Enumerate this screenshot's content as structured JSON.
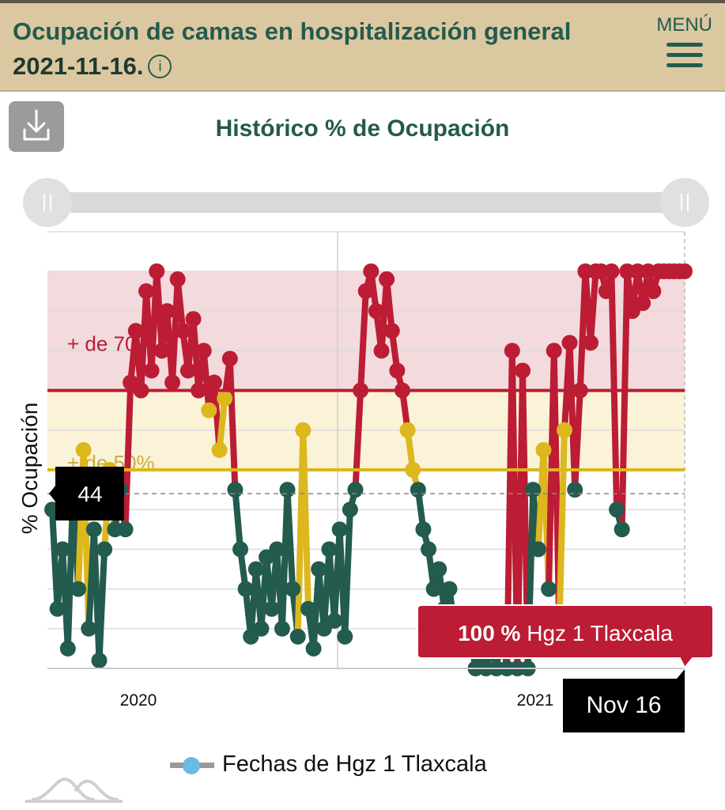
{
  "header": {
    "title": "Ocupación de camas en hospitalización general",
    "date": "2021-11-16.",
    "info_icon": "info-icon",
    "menu_label": "MENÚ",
    "menu_icon": "hamburger-icon"
  },
  "download_icon": "download-icon",
  "colors": {
    "green": "#235b4e",
    "yellow": "#dcb71e",
    "red": "#bc1c34",
    "red_band": "#f3dadd",
    "yellow_band": "#faf3d8",
    "header_bg": "#dcc8a0"
  },
  "chart_data": {
    "type": "line",
    "title": "Histórico % de Ocupación",
    "ylabel": "% Ocupación",
    "ylim": [
      0,
      110
    ],
    "x_ticks": [
      "2020",
      "2021"
    ],
    "grid": true,
    "bands": [
      {
        "label": "+ de 70%",
        "from": 70,
        "to": 100,
        "color": "#f3dadd"
      },
      {
        "label": "+ de 50%",
        "from": 50,
        "to": 70,
        "color": "#faf3d8"
      }
    ],
    "thresholds": [
      70,
      50
    ],
    "series": [
      {
        "name": "Fechas de Hgz 1 Tlaxcala",
        "values": [
          40,
          15,
          30,
          5,
          45,
          20,
          55,
          10,
          35,
          2,
          30,
          50,
          35,
          45,
          35,
          72,
          85,
          70,
          95,
          75,
          100,
          80,
          90,
          72,
          98,
          85,
          75,
          88,
          70,
          80,
          65,
          72,
          55,
          68,
          78,
          45,
          30,
          20,
          8,
          25,
          10,
          28,
          15,
          30,
          10,
          45,
          20,
          8,
          60,
          15,
          5,
          25,
          10,
          30,
          12,
          35,
          8,
          40,
          45,
          70,
          95,
          100,
          90,
          80,
          98,
          85,
          75,
          70,
          60,
          50,
          45,
          35,
          30,
          20,
          25,
          15,
          20,
          10,
          12,
          5,
          8,
          0,
          2,
          0,
          5,
          0,
          10,
          0,
          80,
          0,
          75,
          0,
          45,
          30,
          55,
          20,
          80,
          10,
          60,
          82,
          45,
          70,
          100,
          82,
          100,
          100,
          95,
          100,
          40,
          35,
          100,
          90,
          100,
          92,
          100,
          95,
          100,
          100,
          100,
          100,
          100,
          100
        ]
      }
    ],
    "crosshair": {
      "y_value": "44",
      "x_value": "Nov 16"
    },
    "tooltip": {
      "value": "100 %",
      "series": "Hgz 1 Tlaxcala"
    },
    "legend_position": "bottom"
  },
  "logo_icon": "mountain-logo-icon"
}
